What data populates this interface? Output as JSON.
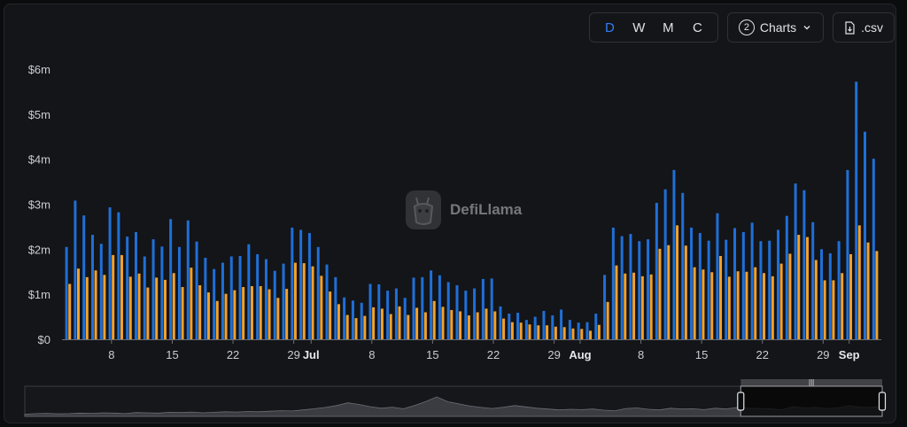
{
  "toolbar": {
    "periods": [
      "D",
      "W",
      "M",
      "C"
    ],
    "active_period": "D",
    "charts_count": "2",
    "charts_label": "Charts",
    "csv_label": ".csv"
  },
  "brand": {
    "watermark": "DefiLlama"
  },
  "colors": {
    "series1": "#1f6fd8",
    "series2": "#f2a12b",
    "accent": "#2f7df6"
  },
  "chart_data": {
    "type": "bar",
    "ylim": [
      0,
      6000000
    ],
    "y_ticks": [
      "$0",
      "$1m",
      "$2m",
      "$3m",
      "$4m",
      "$5m",
      "$6m"
    ],
    "x_tick_labels": [
      {
        "label": "8",
        "index": 5,
        "bold": false
      },
      {
        "label": "15",
        "index": 12,
        "bold": false
      },
      {
        "label": "22",
        "index": 19,
        "bold": false
      },
      {
        "label": "29",
        "index": 26,
        "bold": false
      },
      {
        "label": "Jul",
        "index": 28,
        "bold": true
      },
      {
        "label": "8",
        "index": 35,
        "bold": false
      },
      {
        "label": "15",
        "index": 42,
        "bold": false
      },
      {
        "label": "22",
        "index": 49,
        "bold": false
      },
      {
        "label": "29",
        "index": 56,
        "bold": false
      },
      {
        "label": "Aug",
        "index": 59,
        "bold": true
      },
      {
        "label": "8",
        "index": 66,
        "bold": false
      },
      {
        "label": "15",
        "index": 73,
        "bold": false
      },
      {
        "label": "22",
        "index": 80,
        "bold": false
      },
      {
        "label": "29",
        "index": 87,
        "bold": false
      },
      {
        "label": "Sep",
        "index": 90,
        "bold": true
      }
    ],
    "series": [
      {
        "values": [
          2050000,
          3080000,
          2750000,
          2320000,
          2120000,
          2930000,
          2820000,
          2280000,
          2380000,
          1840000,
          2220000,
          2060000,
          2670000,
          2050000,
          2640000,
          2170000,
          1810000,
          1560000,
          1700000,
          1840000,
          1850000,
          2110000,
          1890000,
          1780000,
          1520000,
          1680000,
          2480000,
          2430000,
          2360000,
          2050000,
          1660000,
          1380000,
          930000,
          860000,
          810000,
          1230000,
          1220000,
          1080000,
          1130000,
          920000,
          1370000,
          1380000,
          1530000,
          1420000,
          1270000,
          1200000,
          1080000,
          1130000,
          1340000,
          1350000,
          730000,
          570000,
          590000,
          430000,
          500000,
          630000,
          530000,
          660000,
          430000,
          370000,
          380000,
          570000,
          1430000,
          2480000,
          2290000,
          2340000,
          2180000,
          2220000,
          3030000,
          3330000,
          3760000,
          3250000,
          2480000,
          2360000,
          2190000,
          2800000,
          2210000,
          2470000,
          2380000,
          2590000,
          2180000,
          2190000,
          2430000,
          2740000,
          3460000,
          3310000,
          2600000,
          2000000,
          1910000,
          2180000,
          3760000,
          5720000,
          4610000,
          4010000
        ],
        "color": "#1f6fd8"
      },
      {
        "values": [
          1230000,
          1570000,
          1380000,
          1530000,
          1430000,
          1870000,
          1870000,
          1390000,
          1460000,
          1150000,
          1370000,
          1320000,
          1470000,
          1160000,
          1590000,
          1200000,
          1040000,
          850000,
          1010000,
          1090000,
          1160000,
          1180000,
          1180000,
          1110000,
          920000,
          1120000,
          1700000,
          1690000,
          1620000,
          1410000,
          1060000,
          780000,
          540000,
          470000,
          520000,
          710000,
          680000,
          560000,
          730000,
          540000,
          700000,
          600000,
          850000,
          720000,
          650000,
          620000,
          530000,
          600000,
          680000,
          620000,
          460000,
          380000,
          370000,
          330000,
          310000,
          310000,
          280000,
          270000,
          240000,
          230000,
          190000,
          320000,
          830000,
          1640000,
          1460000,
          1480000,
          1400000,
          1440000,
          2010000,
          2090000,
          2530000,
          2080000,
          1600000,
          1550000,
          1490000,
          1850000,
          1390000,
          1510000,
          1500000,
          1600000,
          1470000,
          1400000,
          1680000,
          1900000,
          2320000,
          2270000,
          1760000,
          1310000,
          1310000,
          1470000,
          1890000,
          2530000,
          2150000,
          1960000
        ],
        "color": "#f2a12b"
      }
    ],
    "overview": {
      "values": [
        0.08,
        0.1,
        0.11,
        0.09,
        0.1,
        0.12,
        0.11,
        0.13,
        0.12,
        0.1,
        0.14,
        0.13,
        0.12,
        0.15,
        0.14,
        0.16,
        0.13,
        0.15,
        0.17,
        0.16,
        0.18,
        0.17,
        0.19,
        0.21,
        0.2,
        0.24,
        0.28,
        0.33,
        0.4,
        0.5,
        0.44,
        0.36,
        0.3,
        0.34,
        0.28,
        0.4,
        0.55,
        0.72,
        0.54,
        0.46,
        0.38,
        0.33,
        0.29,
        0.34,
        0.4,
        0.35,
        0.3,
        0.27,
        0.24,
        0.26,
        0.25,
        0.27,
        0.23,
        0.21,
        0.29,
        0.31,
        0.26,
        0.24,
        0.3,
        0.27,
        0.28,
        0.25,
        0.3,
        0.27,
        0.33,
        0.3,
        0.29,
        0.28,
        0.24,
        0.36,
        0.31,
        0.33,
        0.29,
        0.31,
        0.39,
        0.34,
        0.33,
        0.38
      ],
      "selection_start": 0.835
    }
  }
}
